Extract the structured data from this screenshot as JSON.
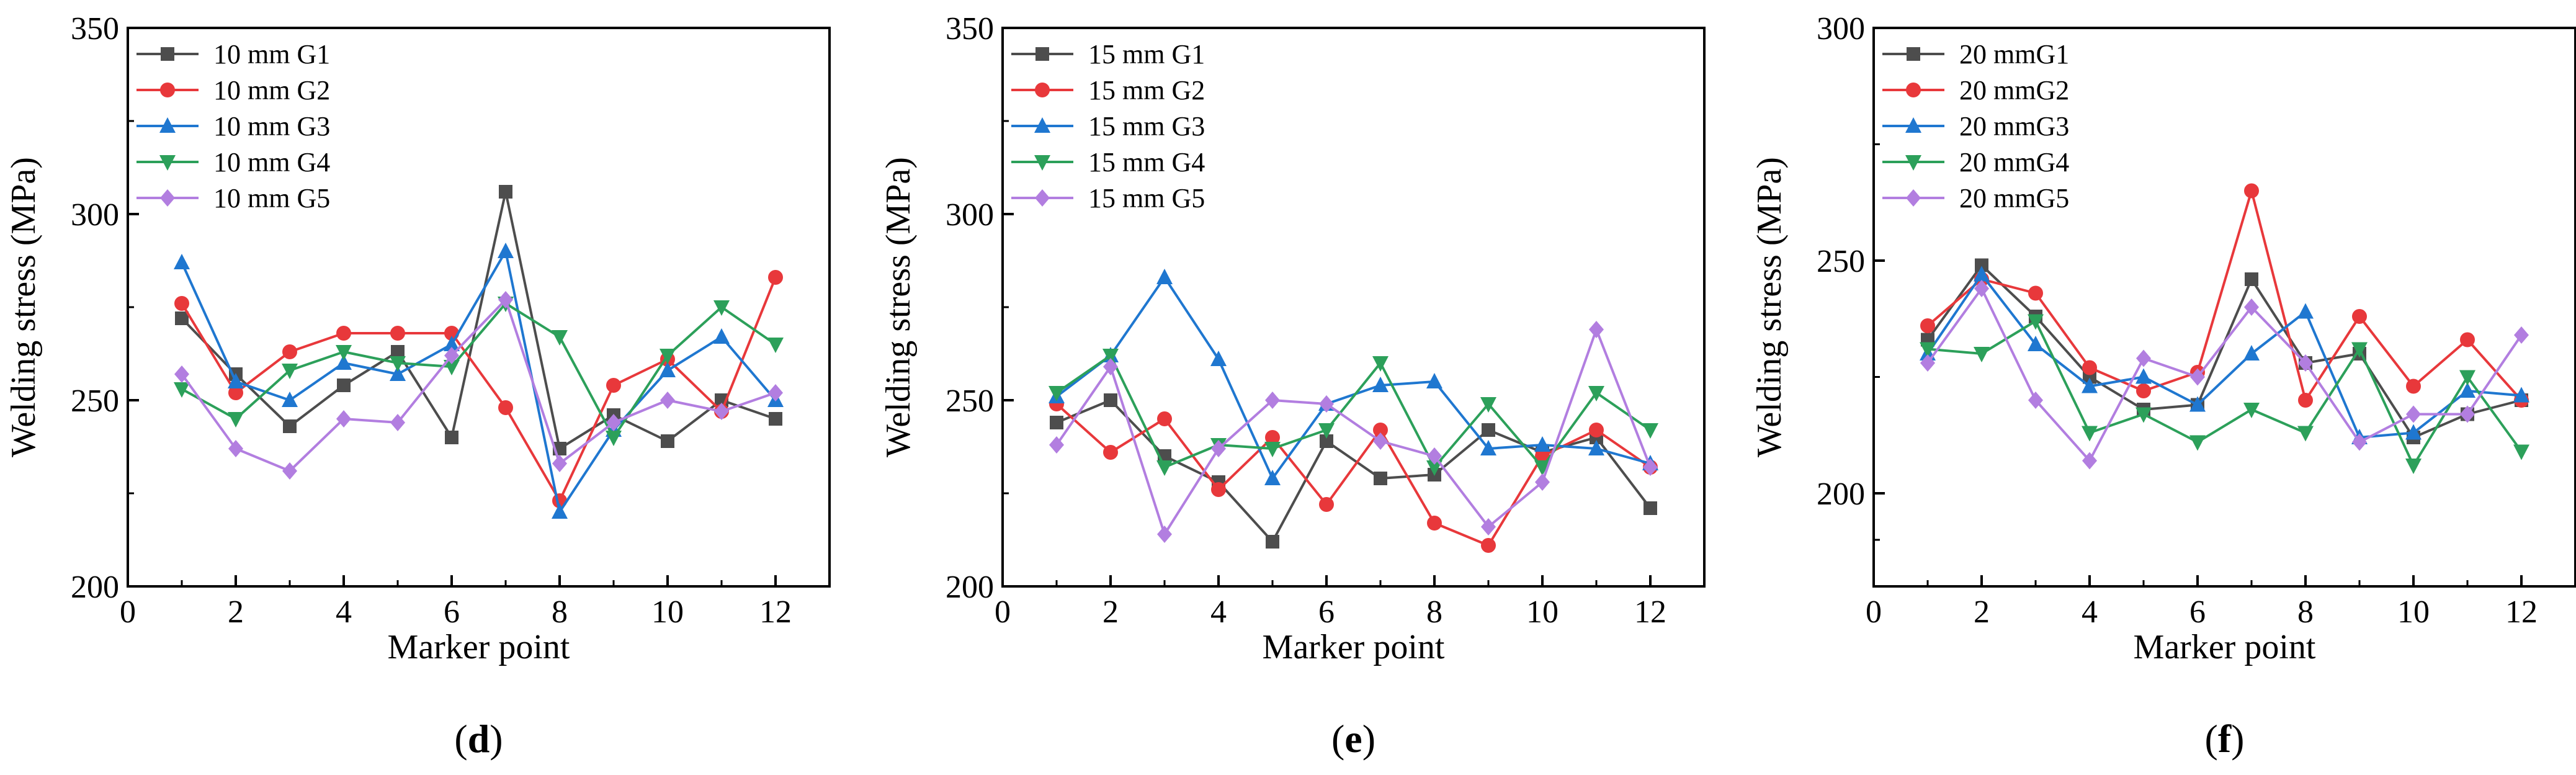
{
  "chart_data": [
    {
      "type": "line",
      "panel_label": "d",
      "xlabel": "Marker point",
      "ylabel": "Welding stress (MPa)",
      "xlim": [
        0,
        13
      ],
      "ylim": [
        200,
        350
      ],
      "xticks": [
        0,
        2,
        4,
        6,
        8,
        10,
        12
      ],
      "yticks": [
        200,
        250,
        300,
        350
      ],
      "legend_position": "top-left",
      "x": [
        1,
        2,
        3,
        4,
        5,
        6,
        7,
        8,
        9,
        10,
        11,
        12
      ],
      "series": [
        {
          "name": "10 mm G1",
          "color": "#4d4d4d",
          "marker": "square",
          "values": [
            272,
            257,
            243,
            254,
            263,
            240,
            306,
            237,
            246,
            239,
            250,
            245
          ]
        },
        {
          "name": "10 mm G2",
          "color": "#e8383b",
          "marker": "circle",
          "values": [
            276,
            252,
            263,
            268,
            268,
            268,
            248,
            223,
            254,
            261,
            247,
            283
          ]
        },
        {
          "name": "10 mm G3",
          "color": "#1f77d0",
          "marker": "triangle-up",
          "values": [
            287,
            255,
            250,
            260,
            257,
            265,
            290,
            220,
            242,
            258,
            267,
            250
          ]
        },
        {
          "name": "10 mm G4",
          "color": "#2ca05a",
          "marker": "triangle-down",
          "values": [
            253,
            245,
            258,
            263,
            260,
            259,
            276,
            267,
            240,
            262,
            275,
            265
          ]
        },
        {
          "name": "10 mm G5",
          "color": "#b27ee0",
          "marker": "diamond",
          "values": [
            257,
            237,
            231,
            245,
            244,
            262,
            277,
            233,
            244,
            250,
            247,
            252
          ]
        }
      ]
    },
    {
      "type": "line",
      "panel_label": "e",
      "xlabel": "Marker point",
      "ylabel": "Welding stress (MPa)",
      "xlim": [
        0,
        13
      ],
      "ylim": [
        200,
        350
      ],
      "xticks": [
        0,
        2,
        4,
        6,
        8,
        10,
        12
      ],
      "yticks": [
        200,
        250,
        300,
        350
      ],
      "legend_position": "top-left",
      "x": [
        1,
        2,
        3,
        4,
        5,
        6,
        7,
        8,
        9,
        10,
        11,
        12
      ],
      "series": [
        {
          "name": "15 mm G1",
          "color": "#4d4d4d",
          "marker": "square",
          "values": [
            244,
            250,
            235,
            228,
            212,
            239,
            229,
            230,
            242,
            236,
            240,
            221
          ]
        },
        {
          "name": "15 mm G2",
          "color": "#e8383b",
          "marker": "circle",
          "values": [
            249,
            236,
            245,
            226,
            240,
            222,
            242,
            217,
            211,
            235,
            242,
            232
          ]
        },
        {
          "name": "15 mm G3",
          "color": "#1f77d0",
          "marker": "triangle-up",
          "values": [
            251,
            262,
            283,
            261,
            229,
            249,
            254,
            255,
            237,
            238,
            237,
            233
          ]
        },
        {
          "name": "15 mm G4",
          "color": "#2ca05a",
          "marker": "triangle-down",
          "values": [
            252,
            262,
            232,
            238,
            237,
            242,
            260,
            232,
            249,
            232,
            252,
            242
          ]
        },
        {
          "name": "15 mm G5",
          "color": "#b27ee0",
          "marker": "diamond",
          "values": [
            238,
            259,
            214,
            237,
            250,
            249,
            239,
            235,
            216,
            228,
            269,
            232
          ]
        }
      ]
    },
    {
      "type": "line",
      "panel_label": "f",
      "xlabel": "Marker point",
      "ylabel": "Welding stress (MPa)",
      "xlim": [
        0,
        13
      ],
      "ylim": [
        180,
        300
      ],
      "xticks": [
        0,
        2,
        4,
        6,
        8,
        10,
        12
      ],
      "yticks": [
        200,
        250,
        300
      ],
      "legend_position": "top-left",
      "x": [
        1,
        2,
        3,
        4,
        5,
        6,
        7,
        8,
        9,
        10,
        11,
        12
      ],
      "series": [
        {
          "name": "20 mmG1",
          "color": "#4d4d4d",
          "marker": "square",
          "values": [
            233,
            249,
            238,
            225,
            218,
            219,
            246,
            228,
            230,
            212,
            217,
            220
          ]
        },
        {
          "name": "20 mmG2",
          "color": "#e8383b",
          "marker": "circle",
          "values": [
            236,
            246,
            243,
            227,
            222,
            226,
            265,
            220,
            238,
            223,
            233,
            220
          ]
        },
        {
          "name": "20 mmG3",
          "color": "#1f77d0",
          "marker": "triangle-up",
          "values": [
            230,
            247,
            232,
            223,
            225,
            219,
            230,
            239,
            212,
            213,
            222,
            221
          ]
        },
        {
          "name": "20 mmG4",
          "color": "#2ca05a",
          "marker": "triangle-down",
          "values": [
            231,
            230,
            237,
            213,
            217,
            211,
            218,
            213,
            231,
            206,
            225,
            209
          ]
        },
        {
          "name": "20 mmG5",
          "color": "#b27ee0",
          "marker": "diamond",
          "values": [
            228,
            244,
            220,
            207,
            229,
            225,
            240,
            228,
            211,
            217,
            217,
            234
          ]
        }
      ]
    }
  ]
}
